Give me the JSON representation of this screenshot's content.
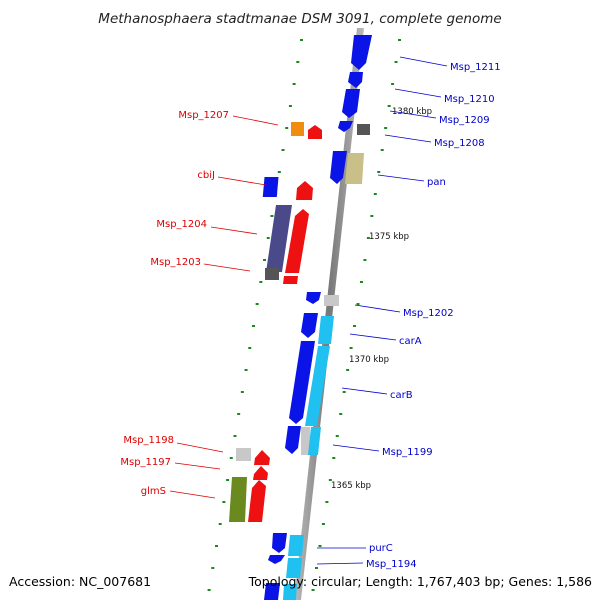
{
  "title": "Methanosphaera stadtmanae DSM 3091, complete genome",
  "accession": "Accession: NC_007681",
  "topology": "Topology: circular; Length: 1,767,403 bp; Genes: 1,586",
  "colors": {
    "forward_label": "#dd0000",
    "reverse_label": "#0000cc",
    "backbone": "#8a8a8a",
    "tick": "#1a8a1a",
    "cds_blue": "#0a14e6",
    "cds_cyan": "#20c0f0",
    "cds_red": "#ee1111",
    "cds_orange": "#f08c10",
    "cds_khaki": "#c8c088",
    "cds_grey": "#c8c8c8",
    "cds_purple": "#4a4a8a",
    "cds_olive": "#6a8a20",
    "rna_dark": "#555555"
  },
  "scale_labels": [
    "1380 kbp",
    "1375 kbp",
    "1370 kbp",
    "1365 kbp"
  ],
  "forward_labels": [
    "Msp_1207",
    "cbiJ",
    "Msp_1204",
    "Msp_1203",
    "Msp_1198",
    "Msp_1197",
    "glmS"
  ],
  "reverse_labels": [
    "Msp_1211",
    "Msp_1210",
    "Msp_1209",
    "Msp_1208",
    "pan",
    "Msp_1202",
    "carA",
    "carB",
    "Msp_1199",
    "purC",
    "Msp_1194"
  ]
}
